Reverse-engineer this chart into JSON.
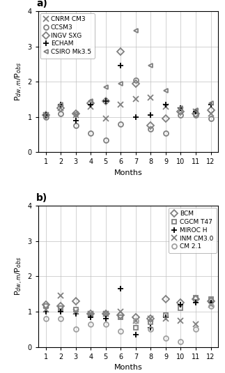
{
  "months": [
    1,
    2,
    3,
    4,
    5,
    6,
    7,
    8,
    9,
    10,
    11,
    12
  ],
  "panel_a": {
    "CNRM_CM3": [
      1.05,
      1.25,
      1.05,
      1.3,
      0.95,
      1.35,
      1.5,
      1.55,
      1.3,
      1.2,
      1.15,
      1.1
    ],
    "CCSM3": [
      1.0,
      1.1,
      0.75,
      0.55,
      0.35,
      0.8,
      2.05,
      0.65,
      0.55,
      1.05,
      1.05,
      0.95
    ],
    "INGV_SXG": [
      1.05,
      1.25,
      1.1,
      1.4,
      1.45,
      2.85,
      1.95,
      0.75,
      0.95,
      1.15,
      1.1,
      1.2
    ],
    "ECHAM": [
      1.05,
      1.35,
      0.9,
      1.35,
      1.45,
      2.45,
      1.0,
      1.05,
      1.35,
      1.25,
      1.15,
      1.35
    ],
    "CSIRO_Mk35": [
      1.05,
      1.35,
      1.1,
      1.45,
      1.85,
      1.95,
      3.45,
      2.45,
      1.75,
      1.25,
      1.2,
      1.4
    ]
  },
  "panel_b": {
    "BCM": [
      1.2,
      1.15,
      1.3,
      0.95,
      0.95,
      0.9,
      0.85,
      0.8,
      1.35,
      1.25,
      1.35,
      1.3
    ],
    "CGCM_T47": [
      1.15,
      1.1,
      1.05,
      0.9,
      0.95,
      0.85,
      0.55,
      0.7,
      0.9,
      1.1,
      1.4,
      1.35
    ],
    "MIROC_H": [
      1.0,
      1.0,
      0.95,
      0.85,
      0.8,
      1.65,
      0.35,
      0.55,
      0.85,
      1.2,
      1.25,
      1.25
    ],
    "INM_CM30": [
      1.05,
      1.45,
      1.0,
      0.95,
      0.95,
      1.0,
      0.75,
      0.8,
      0.8,
      0.75,
      0.65,
      1.2
    ],
    "CM21": [
      0.8,
      0.8,
      0.5,
      0.65,
      0.65,
      0.45,
      0.75,
      0.5,
      0.25,
      0.15,
      0.5,
      1.15
    ]
  },
  "color_a": {
    "CNRM_CM3": "#808080",
    "CCSM3": "#808080",
    "INGV_SXG": "#808080",
    "ECHAM": "#000000",
    "CSIRO_Mk35": "#808080"
  },
  "color_b": {
    "BCM": "#808080",
    "CGCM_T47": "#808080",
    "MIROC_H": "#000000",
    "INM_CM30": "#808080",
    "CM21": "#a0a0a0"
  },
  "markers_a": {
    "CNRM_CM3": "x",
    "CCSM3": "o",
    "INGV_SXG": "D",
    "ECHAM": "+",
    "CSIRO_Mk35": "<"
  },
  "markers_b": {
    "BCM": "D",
    "CGCM_T47": "s",
    "MIROC_H": "+",
    "INM_CM30": "x",
    "CM21": "o"
  },
  "labels_a": {
    "CNRM_CM3": "CNRM CM3",
    "CCSM3": "CCSM3",
    "INGV_SXG": "INGV SXG",
    "ECHAM": "ECHAM",
    "CSIRO_Mk35": "CSIRO Mk3.5"
  },
  "labels_b": {
    "BCM": "BCM",
    "CGCM_T47": "CGCM T47",
    "MIROC_H": "MIROC H",
    "INM_CM30": "INM CM3.0",
    "CM21": "CM 2.1"
  },
  "ylabel": "P$_{dw,m}$/P$_{obs}$",
  "xlabel": "Months",
  "ylim": [
    0,
    4
  ],
  "yticks": [
    0,
    1,
    2,
    3,
    4
  ],
  "legend_a_loc": "upper left",
  "legend_b_loc": "upper right"
}
